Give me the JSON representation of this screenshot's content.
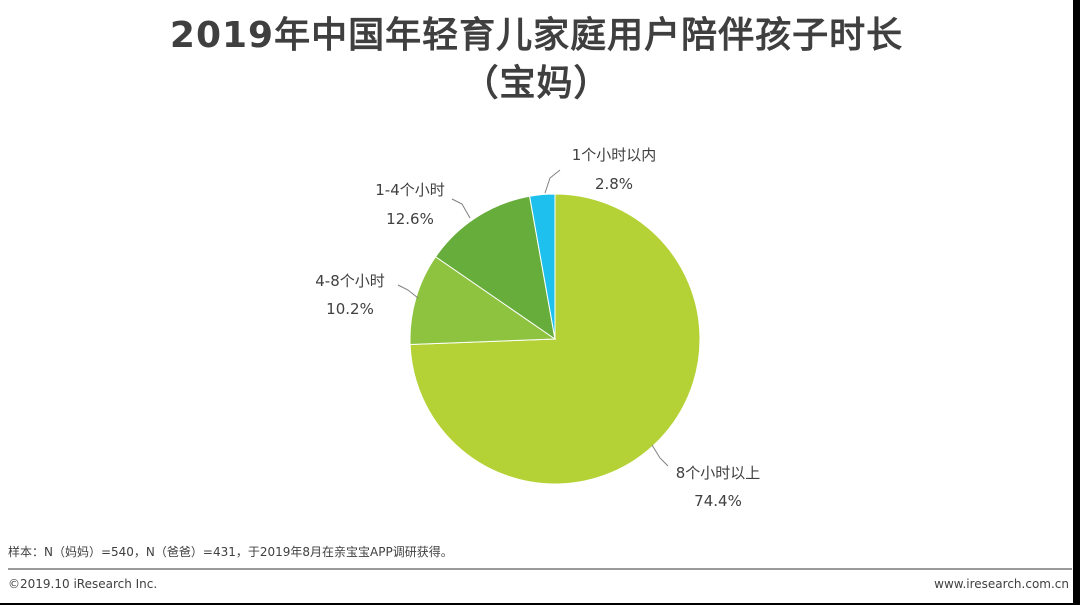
{
  "title": {
    "line1": "2019年中国年轻育儿家庭用户陪伴孩子时长",
    "line2": "（宝妈）"
  },
  "chart_data": {
    "type": "pie",
    "title": "2019年中国年轻育儿家庭用户陪伴孩子时长（宝妈）",
    "slices": [
      {
        "label": "8个小时以上",
        "value": 74.4,
        "value_label": "74.4%",
        "color": "#b4d236"
      },
      {
        "label": "4-8个小时",
        "value": 10.2,
        "value_label": "10.2%",
        "color": "#8dc33e"
      },
      {
        "label": "1-4个小时",
        "value": 12.6,
        "value_label": "12.6%",
        "color": "#67ad3c"
      },
      {
        "label": "1个小时以内",
        "value": 2.8,
        "value_label": "2.8%",
        "color": "#1ec1ee"
      }
    ]
  },
  "footer": {
    "note": "样本：N（妈妈）=540，N（爸爸）=431，于2019年8月在亲宝宝APP调研获得。",
    "copyright": "©2019.10 iResearch Inc.",
    "website": "www.iresearch.com.cn"
  }
}
